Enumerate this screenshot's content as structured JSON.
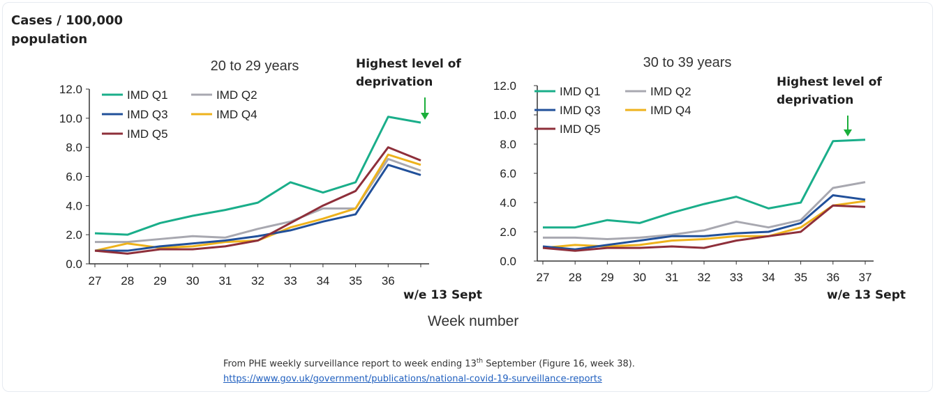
{
  "y_axis_label_line1": "Cases / 100,000",
  "y_axis_label_line2": "population",
  "x_axis_title": "Week number",
  "source": {
    "text_before": "From PHE weekly surveillance report to week ending 13",
    "text_sup": "th",
    "text_after": " September (Figure 16, week 38).",
    "link": "https://www.gov.uk/government/publications/national-covid-19-surveillance-reports"
  },
  "colors": {
    "IMD Q1": "#1aae8a",
    "IMD Q2": "#a8a8b0",
    "IMD Q3": "#21509a",
    "IMD Q4": "#eeb21c",
    "IMD Q5": "#8e2f3a"
  },
  "chart_data": [
    {
      "type": "line",
      "title": "20 to 29 years",
      "x": [
        27,
        28,
        29,
        30,
        31,
        32,
        33,
        34,
        35,
        36,
        37
      ],
      "x_tick_labels": [
        "27",
        "28",
        "29",
        "30",
        "31",
        "32",
        "33",
        "34",
        "35",
        "36"
      ],
      "y_tick_labels": [
        "0.0",
        "2.0",
        "4.0",
        "6.0",
        "8.0",
        "10.0",
        "12.0"
      ],
      "ylim": [
        0,
        12
      ],
      "series": [
        {
          "name": "IMD Q1",
          "values": [
            2.1,
            2.0,
            2.8,
            3.3,
            3.7,
            4.2,
            5.6,
            4.9,
            5.6,
            10.1,
            9.7
          ]
        },
        {
          "name": "IMD Q2",
          "values": [
            1.5,
            1.5,
            1.7,
            1.9,
            1.8,
            2.4,
            2.9,
            3.8,
            3.8,
            7.2,
            6.4
          ]
        },
        {
          "name": "IMD Q3",
          "values": [
            0.9,
            0.9,
            1.2,
            1.4,
            1.6,
            1.9,
            2.3,
            2.9,
            3.4,
            6.8,
            6.1
          ]
        },
        {
          "name": "IMD Q4",
          "values": [
            0.9,
            1.4,
            1.1,
            1.2,
            1.5,
            1.6,
            2.5,
            3.1,
            3.8,
            7.5,
            6.8
          ]
        },
        {
          "name": "IMD Q5",
          "values": [
            0.9,
            0.7,
            1.0,
            1.0,
            1.2,
            1.6,
            2.8,
            4.0,
            5.0,
            8.0,
            7.1
          ]
        }
      ],
      "annotation_line1": "Highest level of",
      "annotation_line2": "deprivation",
      "last_week_label": "w/e 13 Sept",
      "legend_order": [
        "IMD Q1",
        "IMD Q2",
        "IMD Q3",
        "IMD Q4",
        "IMD Q5"
      ],
      "legend": "top-left"
    },
    {
      "type": "line",
      "title": "30 to 39 years",
      "x": [
        27,
        28,
        29,
        30,
        31,
        32,
        33,
        34,
        35,
        36,
        37
      ],
      "x_tick_labels": [
        "27",
        "28",
        "29",
        "30",
        "31",
        "32",
        "33",
        "34",
        "35",
        "36",
        "37"
      ],
      "y_tick_labels": [
        "0.0",
        "2.0",
        "4.0",
        "6.0",
        "8.0",
        "10.0",
        "12.0"
      ],
      "ylim": [
        0,
        12
      ],
      "series": [
        {
          "name": "IMD Q1",
          "values": [
            2.3,
            2.3,
            2.8,
            2.6,
            3.3,
            3.9,
            4.4,
            3.6,
            4.0,
            8.2,
            8.3
          ]
        },
        {
          "name": "IMD Q2",
          "values": [
            1.6,
            1.6,
            1.5,
            1.6,
            1.8,
            2.1,
            2.7,
            2.3,
            2.8,
            5.0,
            5.4
          ]
        },
        {
          "name": "IMD Q3",
          "values": [
            1.0,
            0.8,
            1.1,
            1.4,
            1.7,
            1.7,
            1.9,
            2.0,
            2.6,
            4.5,
            4.2
          ]
        },
        {
          "name": "IMD Q4",
          "values": [
            0.9,
            1.1,
            1.0,
            1.1,
            1.4,
            1.5,
            1.7,
            1.7,
            2.3,
            3.8,
            4.1
          ]
        },
        {
          "name": "IMD Q5",
          "values": [
            0.9,
            0.7,
            0.9,
            0.9,
            1.0,
            0.9,
            1.4,
            1.7,
            2.0,
            3.8,
            3.7
          ]
        }
      ],
      "annotation_line1": "Highest level of",
      "annotation_line2": "deprivation",
      "last_week_label": "w/e 13 Sept",
      "legend_order": [
        "IMD Q1",
        "IMD Q2",
        "IMD Q3",
        "IMD Q4",
        "IMD Q5"
      ],
      "legend": "top-left"
    }
  ]
}
